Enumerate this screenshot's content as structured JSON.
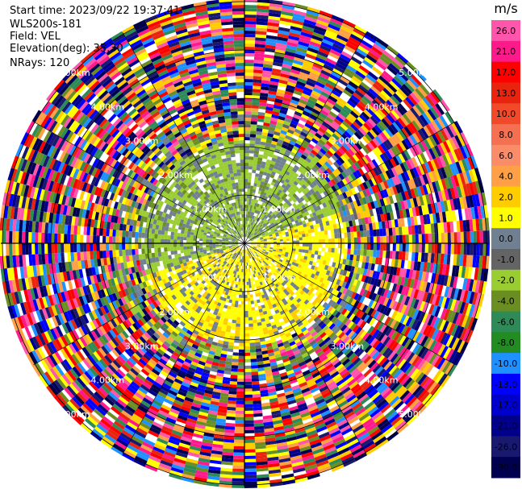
{
  "header": {
    "start_time": "Start time: 2023/09/22 19:37:41",
    "instrument": "WLS200s-181",
    "field": "Field: VEL",
    "elevation": "Elevation(deg): 35.30",
    "nrays": "NRays: 120"
  },
  "colorbar": {
    "unit": "m/s",
    "ticks": [
      "26.0",
      "21.0",
      "17.0",
      "13.0",
      "10.0",
      "8.0",
      "6.0",
      "4.0",
      "2.0",
      "1.0",
      "0.0",
      "-1.0",
      "-2.0",
      "-4.0",
      "-6.0",
      "-8.0",
      "-10.0",
      "-13.0",
      "-17.0",
      "-21.0",
      "-26.0",
      "-30.0"
    ],
    "colors": [
      "#ff55aa",
      "#ff1a8c",
      "#ff0000",
      "#e8240f",
      "#f04a2a",
      "#f57050",
      "#fb8c69",
      "#ff9f46",
      "#ffcc00",
      "#ffff00",
      "#708090",
      "#646464",
      "#9acd32",
      "#6b8e23",
      "#2e8b57",
      "#228b22",
      "#1e90ff",
      "#0000ff",
      "#0000cd",
      "#00008b",
      "#191970",
      "#000050"
    ]
  },
  "chart_data": {
    "type": "ppi-radar",
    "field": "VEL",
    "unit": "m/s",
    "nrays": 120,
    "range_rings_km": [
      "1.00km",
      "2.00km",
      "3.00km",
      "4.00km",
      "5.00km"
    ],
    "vmin": -30.0,
    "vmax": 26.0
  }
}
